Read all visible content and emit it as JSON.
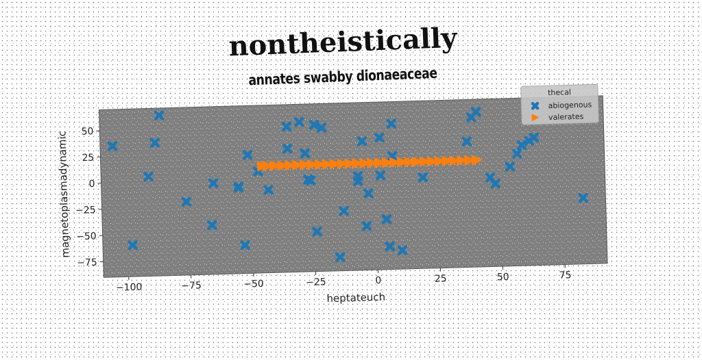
{
  "chart_data": {
    "type": "scatter",
    "title": "nontheistically",
    "subtitle": "annates swabby dionaeaceae",
    "xlabel": "heptateuch",
    "ylabel": "magnetoplasmadynamic",
    "xlim": [
      -110,
      92
    ],
    "ylim": [
      -90,
      70
    ],
    "xticks": [
      -100,
      -75,
      -50,
      -25,
      0,
      25,
      50,
      75
    ],
    "yticks": [
      -75,
      -50,
      -25,
      0,
      25,
      50
    ],
    "grid": false,
    "legend": {
      "title": "thecal",
      "placement": "top-right"
    },
    "series": [
      {
        "name": "abiogenous",
        "marker": "x",
        "color": "#1f77b4",
        "points": [
          [
            -105,
            35
          ],
          [
            -98,
            -60
          ],
          [
            -91,
            5
          ],
          [
            -88,
            37
          ],
          [
            -86,
            63
          ],
          [
            -76,
            -20
          ],
          [
            -66,
            -43
          ],
          [
            -65,
            -3
          ],
          [
            -55,
            -7
          ],
          [
            -55,
            -8
          ],
          [
            -53,
            -63
          ],
          [
            -51,
            23
          ],
          [
            -47,
            7
          ],
          [
            -43,
            -11
          ],
          [
            -35,
            49
          ],
          [
            -35,
            28
          ],
          [
            -30,
            53
          ],
          [
            -28,
            23
          ],
          [
            -27,
            -2
          ],
          [
            -26,
            -3
          ],
          [
            -24,
            50
          ],
          [
            -24,
            -52
          ],
          [
            -21,
            47
          ],
          [
            -15,
            -77
          ],
          [
            -13,
            -33
          ],
          [
            -7,
            -5
          ],
          [
            -7,
            0
          ],
          [
            -5,
            33
          ],
          [
            -4,
            -48
          ],
          [
            -3,
            -17
          ],
          [
            2,
            0
          ],
          [
            2,
            36
          ],
          [
            4,
            -42
          ],
          [
            5,
            -68
          ],
          [
            7,
            49
          ],
          [
            7,
            18
          ],
          [
            10,
            -72
          ],
          [
            19,
            -3
          ],
          [
            37,
            30
          ],
          [
            39,
            53
          ],
          [
            41,
            58
          ],
          [
            46,
            -5
          ],
          [
            48,
            -11
          ],
          [
            54,
            5
          ],
          [
            57,
            17
          ],
          [
            59,
            25
          ],
          [
            62,
            29
          ],
          [
            64,
            32
          ],
          [
            83,
            -27
          ]
        ]
      },
      {
        "name": "valerates",
        "marker": "triangle-right",
        "color": "#ff7f0e",
        "x": [
          -45,
          -43,
          -40,
          -37,
          -34,
          -31,
          -28,
          -25,
          -22,
          -19,
          -16,
          -13,
          -10,
          -7,
          -4,
          -1,
          2,
          5,
          8,
          11,
          14,
          17,
          20,
          23,
          26,
          29,
          32,
          35,
          38,
          41
        ],
        "y": [
          12,
          12,
          12,
          12,
          12,
          12,
          12,
          12,
          12,
          12,
          12,
          12,
          12,
          12,
          12,
          12,
          12,
          12,
          12,
          12,
          12,
          12,
          12,
          12,
          12,
          12,
          12,
          12,
          12,
          12
        ]
      }
    ]
  }
}
